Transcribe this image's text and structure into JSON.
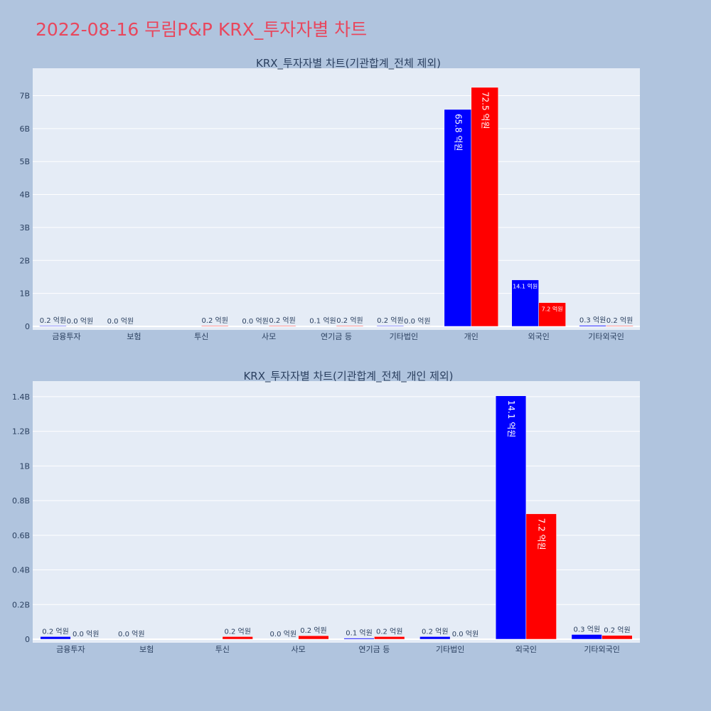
{
  "title": "2022-08-16 무림P&P KRX_투자자별 차트",
  "colors": {
    "buy": "#0000ff",
    "sell": "#ff0000",
    "plot_bg": "#e5ecf6",
    "page_bg": "#b0c4de",
    "title": "#e8475d"
  },
  "chart_data": [
    {
      "type": "bar",
      "title": "KRX_투자자별 차트(기관합계_전체 제외)",
      "categories": [
        "금융투자",
        "보험",
        "투신",
        "사모",
        "연기금 등",
        "기타법인",
        "개인",
        "외국인",
        "기타외국인"
      ],
      "yticks": [
        0,
        1000000000,
        2000000000,
        3000000000,
        4000000000,
        5000000000,
        6000000000,
        7000000000
      ],
      "ytick_labels": [
        "0",
        "1B",
        "2B",
        "3B",
        "4B",
        "5B",
        "6B",
        "7B"
      ],
      "ylim": [
        0,
        7830000000
      ],
      "grid": true,
      "series": [
        {
          "color": "#0000ff",
          "values": [
            20000000,
            3000000,
            0,
            2000000,
            10000000,
            20000000,
            6580000000,
            1410000000,
            30000000
          ],
          "labels": [
            "0.2 억원",
            "0.0 억원",
            "",
            "0.0 억원",
            "0.1 억원",
            "0.2 억원",
            "65.8 억원",
            "14.1 억원",
            "0.3 억원"
          ]
        },
        {
          "color": "#ff0000",
          "values": [
            3000000,
            0,
            20000000,
            20000000,
            20000000,
            3000000,
            7250000000,
            720000000,
            20000000
          ],
          "labels": [
            "0.0 억원",
            "",
            "0.2 억원",
            "0.2 억원",
            "0.2 억원",
            "0.0 억원",
            "72.5 억원",
            "7.2 억원",
            "0.2 억원"
          ]
        }
      ]
    },
    {
      "type": "bar",
      "title": "KRX_투자자별 차트(기관합계_전체_개인 제외)",
      "categories": [
        "금융투자",
        "보험",
        "투신",
        "사모",
        "연기금 등",
        "기타법인",
        "외국인",
        "기타외국인"
      ],
      "yticks": [
        0,
        200000000,
        400000000,
        600000000,
        800000000,
        1000000000,
        1200000000,
        1400000000
      ],
      "ytick_labels": [
        "0",
        "0.2B",
        "0.4B",
        "0.6B",
        "0.8B",
        "1B",
        "1.2B",
        "1.4B"
      ],
      "ylim": [
        0,
        1490000000
      ],
      "grid": true,
      "series": [
        {
          "color": "#0000ff",
          "values": [
            15000000,
            1000000,
            0,
            1000000,
            6000000,
            15000000,
            1405000000,
            27000000
          ],
          "labels": [
            "0.2 억원",
            "0.0 억원",
            "",
            "0.0 억원",
            "0.1 억원",
            "0.2 억원",
            "14.1 억원",
            "0.3 억원"
          ]
        },
        {
          "color": "#ff0000",
          "values": [
            1000000,
            0,
            15000000,
            20000000,
            15000000,
            1000000,
            724000000,
            22000000
          ],
          "labels": [
            "0.0 억원",
            "",
            "0.2 억원",
            "0.2 억원",
            "0.2 억원",
            "0.0 억원",
            "7.2 억원",
            "0.2 억원"
          ]
        }
      ]
    }
  ]
}
